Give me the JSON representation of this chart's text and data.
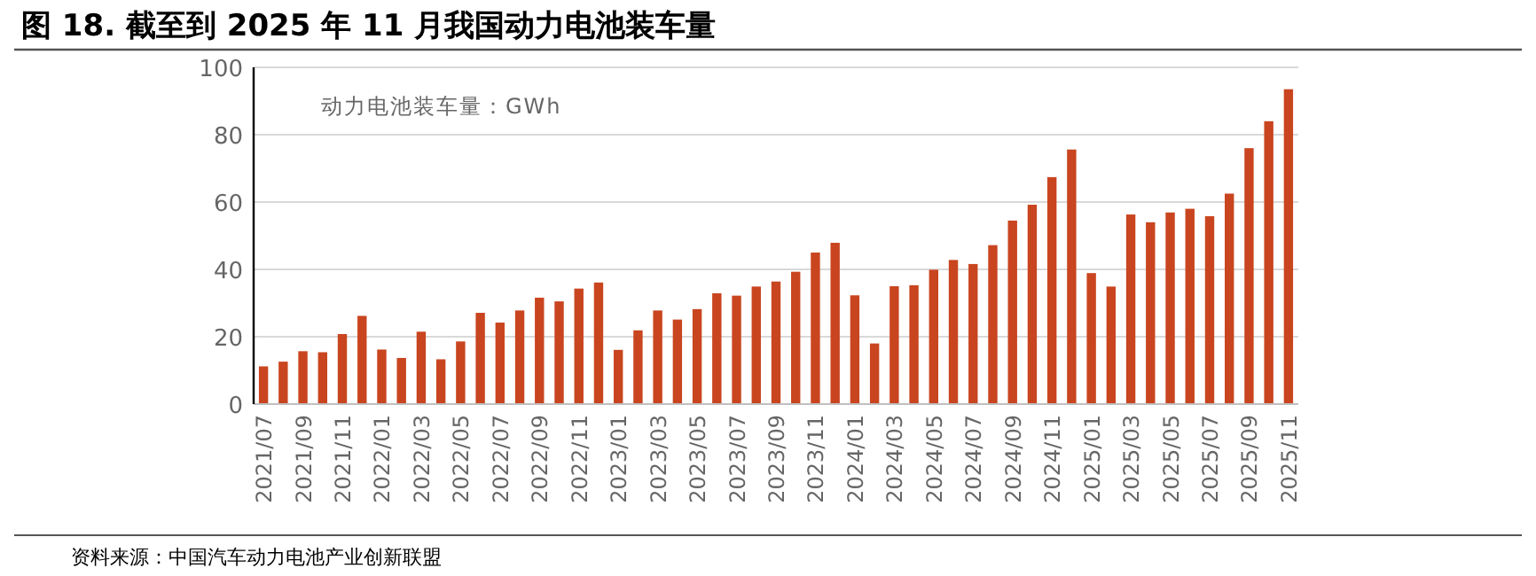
{
  "chart_data": {
    "type": "bar",
    "title": "图 18. 截至到 2025 年 11 月我国动力电池装车量",
    "ylabel": "动力电池装车量：GWh",
    "categories": [
      "2021/07",
      null,
      "2021/09",
      null,
      "2021/11",
      null,
      "2022/01",
      null,
      "2022/03",
      null,
      "2022/05",
      null,
      "2022/07",
      null,
      "2022/09",
      null,
      "2022/11",
      null,
      "2023/01",
      null,
      "2023/03",
      null,
      "2023/05",
      null,
      "2023/07",
      null,
      "2023/09",
      null,
      "2023/11",
      null,
      "2024/01",
      null,
      "2024/03",
      null,
      "2024/05",
      null,
      "2024/07",
      null,
      "2024/09",
      null,
      "2024/11",
      null,
      "2025/01",
      null,
      "2025/03",
      null,
      "2025/05",
      null,
      "2025/07",
      null,
      "2025/09",
      null,
      "2025/11"
    ],
    "values": [
      11.2,
      12.6,
      15.7,
      15.4,
      20.8,
      26.2,
      16.2,
      13.7,
      21.5,
      13.3,
      18.6,
      27.1,
      24.2,
      27.8,
      31.6,
      30.5,
      34.3,
      36.1,
      16.1,
      21.9,
      27.8,
      25.1,
      28.2,
      32.9,
      32.2,
      34.9,
      36.4,
      39.3,
      45.0,
      47.9,
      32.3,
      18.0,
      35.0,
      35.3,
      39.9,
      42.8,
      41.6,
      47.2,
      54.5,
      59.2,
      67.4,
      75.6,
      38.9,
      34.9,
      56.3,
      54.0,
      56.9,
      58.0,
      55.8,
      62.5,
      76.0,
      84.0,
      93.5
    ],
    "color": "#c9451f",
    "ylim": [
      0,
      100
    ],
    "yticks": [
      0,
      20,
      40,
      60,
      80,
      100
    ],
    "grid": "y",
    "annotations": [
      "资料来源：中国汽车动力电池产业创新联盟"
    ]
  }
}
